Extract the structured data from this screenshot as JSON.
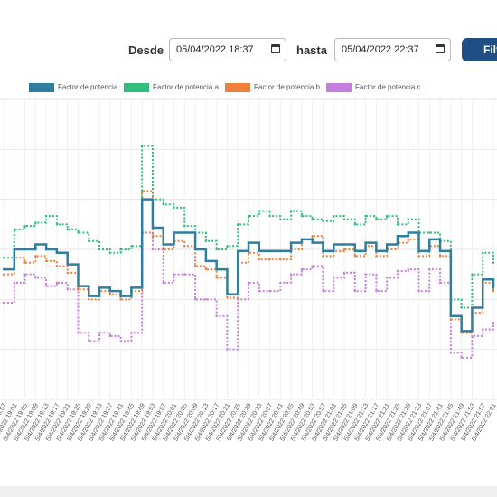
{
  "filters": {
    "desde_label": "Desde",
    "desde_value": "05/04/2022 18:37",
    "hasta_label": "hasta",
    "hasta_value": "05/04/2022 22:37",
    "filter_button_label": "Filtrar"
  },
  "chart_data": {
    "type": "line",
    "title": "",
    "xlabel": "",
    "ylabel": "",
    "legend_position": "top",
    "grid": true,
    "ylim": [
      0.78,
      0.96
    ],
    "x": [
      "5/4/2022 18:57",
      "5/4/2022 19:01",
      "5/4/2022 19:05",
      "5/4/2022 19:09",
      "5/4/2022 19:13",
      "5/4/2022 19:17",
      "5/4/2022 19:21",
      "5/4/2022 19:25",
      "5/4/2022 19:29",
      "5/4/2022 19:33",
      "5/4/2022 19:37",
      "5/4/2022 19:41",
      "5/4/2022 19:45",
      "5/4/2022 19:49",
      "5/4/2022 19:53",
      "5/4/2022 19:57",
      "5/4/2022 20:01",
      "5/4/2022 20:05",
      "5/4/2022 20:09",
      "5/4/2022 20:13",
      "5/4/2022 20:17",
      "5/4/2022 20:21",
      "5/4/2022 20:25",
      "5/4/2022 20:29",
      "5/4/2022 20:33",
      "5/4/2022 20:37",
      "5/4/2022 20:41",
      "5/4/2022 20:45",
      "5/4/2022 20:49",
      "5/4/2022 20:53",
      "5/4/2022 20:57",
      "5/4/2022 21:01",
      "5/4/2022 21:05",
      "5/4/2022 21:09",
      "5/4/2022 21:13",
      "5/4/2022 21:17",
      "5/4/2022 21:21",
      "5/4/2022 21:25",
      "5/4/2022 21:29",
      "5/4/2022 21:33",
      "5/4/2022 21:37",
      "5/4/2022 21:41",
      "5/4/2022 21:45",
      "5/4/2022 21:49",
      "5/4/2022 21:53",
      "5/4/2022 21:57",
      "5/4/2022 22:01"
    ],
    "series": [
      {
        "name": "Factor de potencia",
        "color": "#2f7ea0",
        "style": "solid",
        "values": [
          0.858,
          0.87,
          0.87,
          0.873,
          0.87,
          0.868,
          0.861,
          0.848,
          0.842,
          0.847,
          0.845,
          0.842,
          0.847,
          0.9,
          0.883,
          0.873,
          0.88,
          0.88,
          0.87,
          0.863,
          0.858,
          0.843,
          0.869,
          0.874,
          0.869,
          0.869,
          0.869,
          0.874,
          0.876,
          0.874,
          0.869,
          0.873,
          0.873,
          0.869,
          0.874,
          0.869,
          0.873,
          0.878,
          0.88,
          0.869,
          0.876,
          0.869,
          0.83,
          0.821,
          0.835,
          0.852,
          0.847
        ]
      },
      {
        "name": "Factor de potencia a",
        "color": "#2ebd7a",
        "style": "dotted",
        "values": [
          0.865,
          0.882,
          0.884,
          0.886,
          0.89,
          0.885,
          0.882,
          0.88,
          0.875,
          0.87,
          0.868,
          0.87,
          0.872,
          0.932,
          0.9,
          0.897,
          0.895,
          0.884,
          0.88,
          0.875,
          0.87,
          0.872,
          0.885,
          0.89,
          0.893,
          0.89,
          0.888,
          0.893,
          0.89,
          0.888,
          0.887,
          0.89,
          0.888,
          0.885,
          0.89,
          0.888,
          0.89,
          0.885,
          0.888,
          0.88,
          0.88,
          0.875,
          0.84,
          0.835,
          0.855,
          0.868,
          0.862
        ]
      },
      {
        "name": "Factor de potencia b",
        "color": "#ef7f3c",
        "style": "dotted",
        "values": [
          0.855,
          0.865,
          0.862,
          0.866,
          0.863,
          0.86,
          0.856,
          0.846,
          0.84,
          0.845,
          0.843,
          0.84,
          0.845,
          0.905,
          0.878,
          0.87,
          0.875,
          0.872,
          0.86,
          0.858,
          0.853,
          0.841,
          0.862,
          0.868,
          0.864,
          0.864,
          0.864,
          0.87,
          0.876,
          0.878,
          0.866,
          0.869,
          0.87,
          0.866,
          0.872,
          0.866,
          0.87,
          0.874,
          0.876,
          0.866,
          0.872,
          0.866,
          0.828,
          0.82,
          0.832,
          0.85,
          0.845
        ]
      },
      {
        "name": "Factor de potencia c",
        "color": "#c77ddb",
        "style": "dotted",
        "values": [
          0.838,
          0.85,
          0.855,
          0.853,
          0.848,
          0.85,
          0.846,
          0.82,
          0.815,
          0.82,
          0.818,
          0.815,
          0.82,
          0.88,
          0.87,
          0.85,
          0.855,
          0.855,
          0.84,
          0.84,
          0.83,
          0.81,
          0.84,
          0.85,
          0.845,
          0.845,
          0.85,
          0.855,
          0.858,
          0.86,
          0.845,
          0.853,
          0.856,
          0.845,
          0.855,
          0.845,
          0.853,
          0.857,
          0.858,
          0.845,
          0.858,
          0.85,
          0.808,
          0.805,
          0.818,
          0.822,
          0.826
        ]
      }
    ]
  }
}
